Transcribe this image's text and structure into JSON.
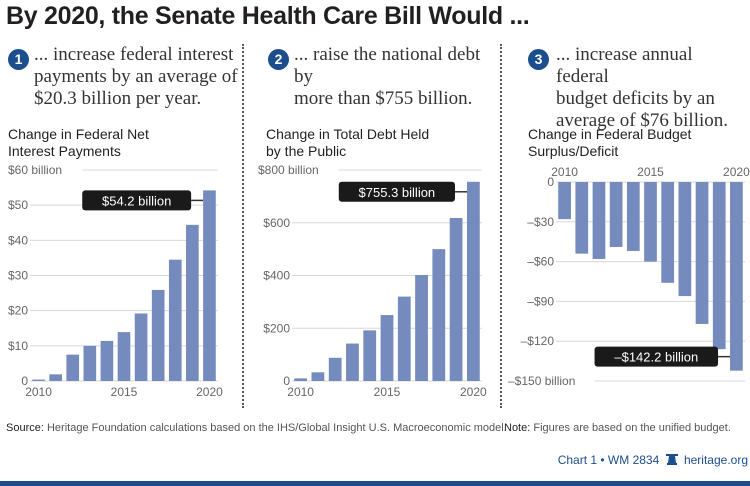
{
  "title": "By 2020, the Senate Health Care Bill Would ...",
  "colors": {
    "bar": "#768bbd",
    "badge": "#1c4d8c",
    "callout_bg": "#1a1a1a",
    "grid": "#d8d8d8",
    "accent": "#1c4d8c"
  },
  "panels": [
    {
      "number": "1",
      "claim_lines": [
        "... increase federal interest",
        "payments by an average of",
        "$20.3 billion per year."
      ],
      "subtitle_lines": [
        "Change in Federal Net",
        "Interest Payments"
      ]
    },
    {
      "number": "2",
      "claim_lines": [
        "... raise the national debt by",
        "more than $755 billion."
      ],
      "subtitle_lines": [
        "Change in Total Debt Held",
        "by the Public"
      ]
    },
    {
      "number": "3",
      "claim_lines": [
        "... increase annual federal",
        "budget deficits by an",
        "average of $76 billion."
      ],
      "subtitle_lines": [
        "Change in Federal Budget",
        "Surplus/Deficit"
      ]
    }
  ],
  "chart_data": [
    {
      "type": "bar",
      "title": "Change in Federal Net Interest Payments",
      "categories": [
        "2010",
        "2011",
        "2012",
        "2013",
        "2014",
        "2015",
        "2016",
        "2017",
        "2018",
        "2019",
        "2020"
      ],
      "values": [
        0.4,
        1.9,
        7.5,
        10.0,
        11.4,
        13.9,
        19.2,
        25.9,
        34.5,
        44.4,
        54.2
      ],
      "ylim": [
        0,
        60
      ],
      "yticks": [
        0,
        10,
        20,
        30,
        40,
        50,
        60
      ],
      "ytick_labels": [
        "0",
        "$10",
        "$20",
        "$30",
        "$40",
        "$50",
        "$60 billion"
      ],
      "xtick_labels": [
        "2010",
        "2015",
        "2020"
      ],
      "grid": true,
      "annotation": "$54.2 billion"
    },
    {
      "type": "bar",
      "title": "Change in Total Debt Held by the Public",
      "categories": [
        "2010",
        "2011",
        "2012",
        "2013",
        "2014",
        "2015",
        "2016",
        "2017",
        "2018",
        "2019",
        "2020"
      ],
      "values": [
        10,
        33,
        88,
        142,
        192,
        250,
        320,
        402,
        500,
        618,
        755.3
      ],
      "ylim": [
        0,
        800
      ],
      "yticks": [
        0,
        200,
        400,
        600,
        800
      ],
      "ytick_labels": [
        "0",
        "$200",
        "$400",
        "$600",
        "$800 billion"
      ],
      "xtick_labels": [
        "2010",
        "2015",
        "2020"
      ],
      "grid": true,
      "annotation": "$755.3 billion"
    },
    {
      "type": "bar",
      "title": "Change in Federal Budget Surplus/Deficit",
      "categories": [
        "2010",
        "2011",
        "2012",
        "2013",
        "2014",
        "2015",
        "2016",
        "2017",
        "2018",
        "2019",
        "2020"
      ],
      "values": [
        -28,
        -54,
        -58,
        -49,
        -52,
        -60,
        -76,
        -86,
        -107,
        -126,
        -142.2
      ],
      "ylim": [
        -150,
        0
      ],
      "yticks": [
        0,
        -30,
        -60,
        -90,
        -120,
        -150
      ],
      "ytick_labels": [
        "0",
        "–$30",
        "–$60",
        "–$90",
        "–$120",
        "–$150 billion"
      ],
      "xtick_labels": [
        "2010",
        "2015",
        "2020"
      ],
      "grid": true,
      "annotation": "–$142.2 billion"
    }
  ],
  "footer": {
    "source_label": "Source:",
    "source_text": "Heritage Foundation calculations based on the IHS/Global Insight U.S. Macroeconomic model.",
    "note_label": "Note:",
    "note_text": "Figures are based on the unified budget.",
    "credit_left": "Chart 1 • WM 2834",
    "credit_icon": "liberty-bell-icon",
    "credit_right": "heritage.org"
  }
}
